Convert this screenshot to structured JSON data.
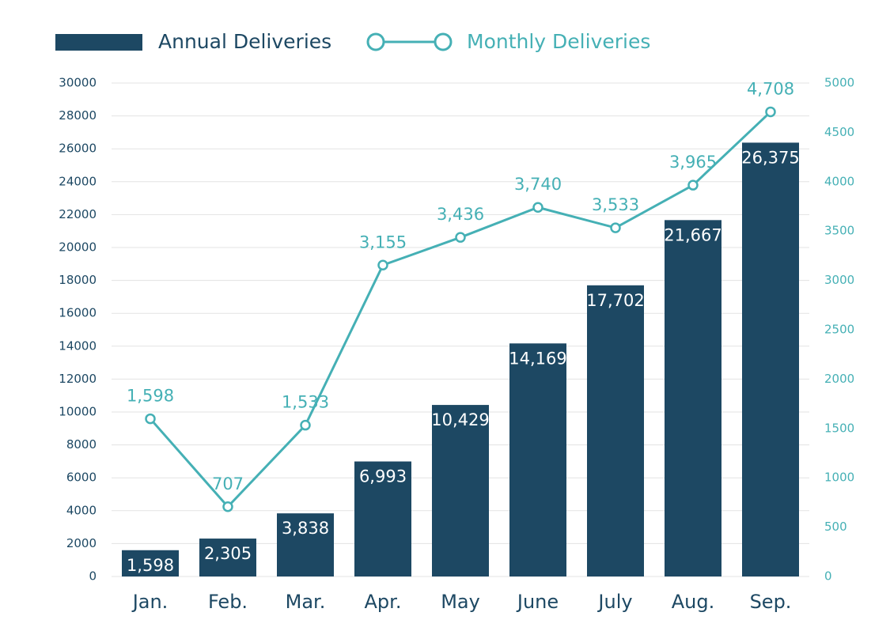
{
  "chart_data": {
    "type": "bar",
    "categories": [
      "Jan.",
      "Feb.",
      "Mar.",
      "Apr.",
      "May",
      "June",
      "July",
      "Aug.",
      "Sep."
    ],
    "series": [
      {
        "name": "Annual Deliveries",
        "type": "bar",
        "color": "#1d4863",
        "values": [
          1598,
          2305,
          3838,
          6993,
          10429,
          14169,
          17702,
          21667,
          26375
        ],
        "value_labels": [
          "1,598",
          "2,305",
          "3,838",
          "6,993",
          "10,429",
          "14,169",
          "17,702",
          "21,667",
          "26,375"
        ]
      },
      {
        "name": "Monthly Deliveries",
        "type": "line",
        "color": "#45b0b5",
        "axis": "y2",
        "values": [
          1598,
          707,
          1533,
          3155,
          3436,
          3740,
          3533,
          3965,
          4708
        ],
        "value_labels": [
          "1,598",
          "707",
          "1,533",
          "3,155",
          "3,436",
          "3,740",
          "3,533",
          "3,965",
          "4,708"
        ]
      }
    ],
    "ylim": [
      0,
      30000
    ],
    "yticks": [
      0,
      2000,
      4000,
      6000,
      8000,
      10000,
      12000,
      14000,
      16000,
      18000,
      20000,
      22000,
      24000,
      26000,
      28000,
      30000
    ],
    "y2lim": [
      0,
      5000
    ],
    "y2ticks": [
      0,
      500,
      1000,
      1500,
      2000,
      2500,
      3000,
      3500,
      4000,
      4500,
      5000
    ],
    "grid": true,
    "legend": "top"
  }
}
